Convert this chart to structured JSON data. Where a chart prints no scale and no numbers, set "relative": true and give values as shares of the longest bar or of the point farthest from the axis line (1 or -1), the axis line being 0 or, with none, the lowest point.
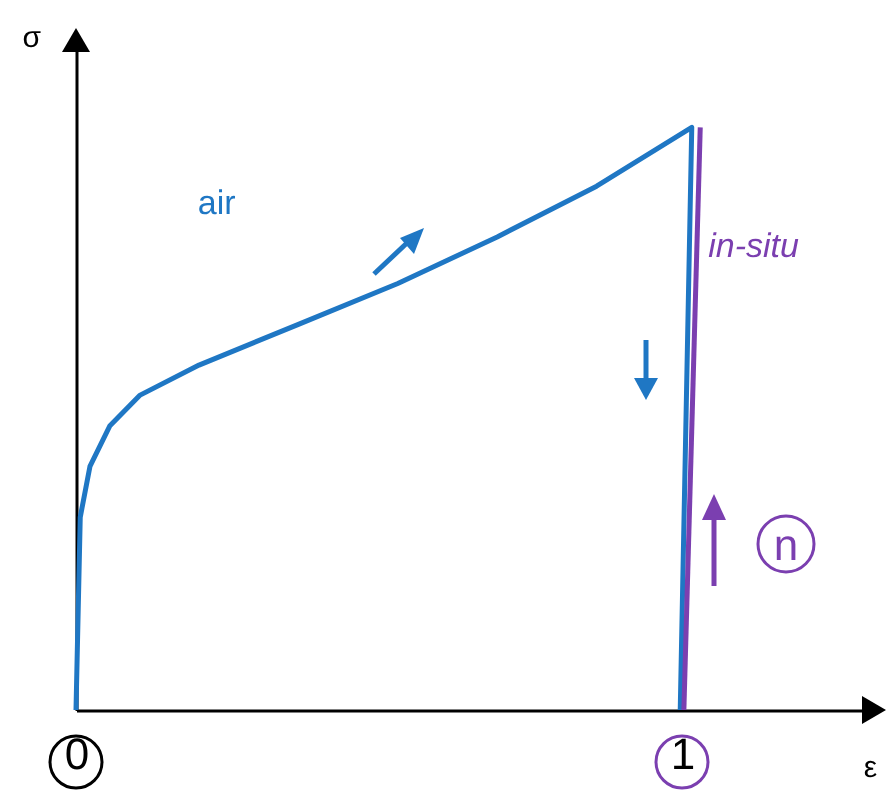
{
  "chart_data": {
    "type": "line",
    "relative": true,
    "xlabel": "ε",
    "ylabel": "σ",
    "xlim": [
      0,
      1.32
    ],
    "xticks": [
      0,
      1
    ],
    "grid": false,
    "legend": false,
    "line_style": "solid",
    "marker": "none",
    "annotations": [
      "n"
    ],
    "series": [
      {
        "name": "air",
        "color": "#1f77c4",
        "x": [
          0,
          0.007,
          0.023,
          0.056,
          0.105,
          0.203,
          0.367,
          0.531,
          0.695,
          0.859,
          1.016,
          0.997
        ],
        "values": [
          0,
          0.331,
          0.418,
          0.488,
          0.54,
          0.592,
          0.662,
          0.732,
          0.812,
          0.899,
          1,
          0
        ]
      },
      {
        "name": "in-situ",
        "color": "#7b3fb0",
        "x": [
          1.003,
          1.03
        ],
        "values": [
          0,
          1
        ]
      }
    ]
  }
}
